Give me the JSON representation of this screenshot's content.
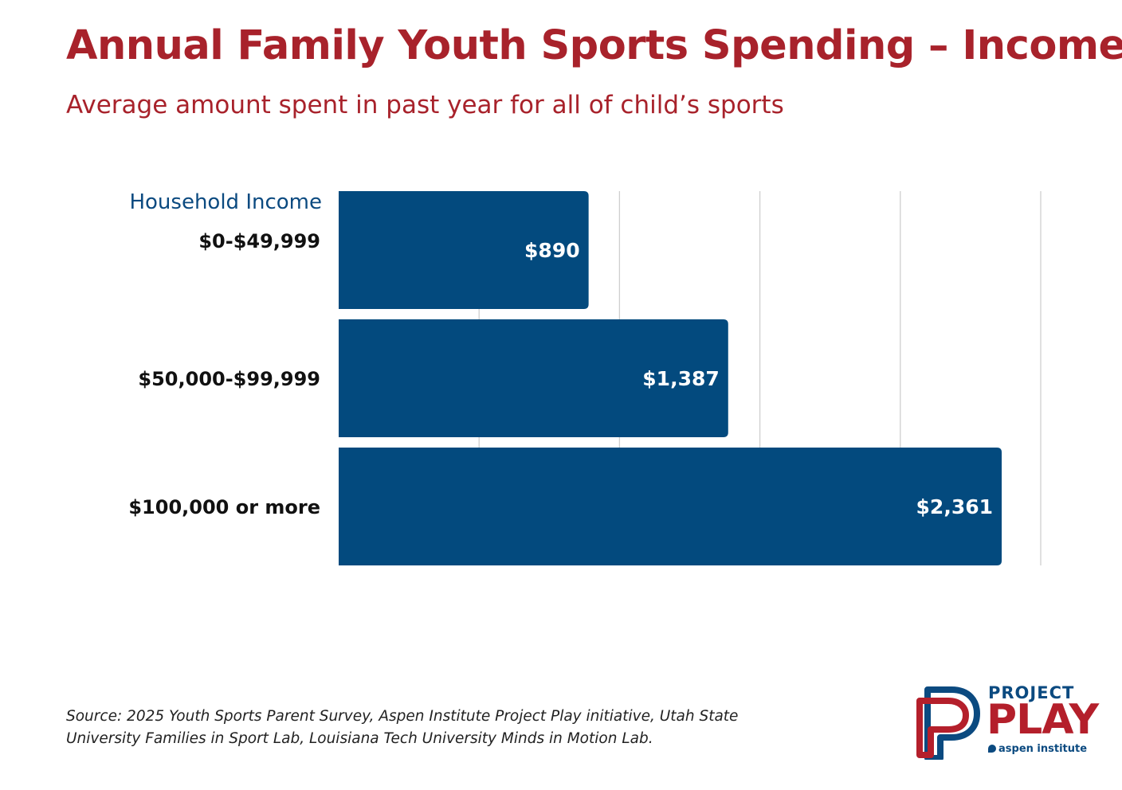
{
  "title": "Annual Family Youth Sports Spending – Income",
  "subtitle": "Average amount spent in past year for all of child’s sports",
  "colors": {
    "title": "#a8222b",
    "bar": "#034a7e",
    "category_heading": "#0b4a80",
    "grid": "#cfcfcf"
  },
  "chart_data": {
    "type": "bar",
    "orientation": "horizontal",
    "category_heading": "Household Income",
    "categories": [
      "$0-$49,999",
      "$50,000-$99,999",
      "$100,000 or more"
    ],
    "values": [
      890,
      1387,
      2361
    ],
    "value_labels": [
      "$890",
      "$1,387",
      "$2,361"
    ],
    "xlim": [
      0,
      2500
    ],
    "gridline_step": 500,
    "grid": true,
    "legend": "none"
  },
  "footer": {
    "source": "Source: 2025 Youth Sports Parent Survey, Aspen Institute Project Play initiative, Utah State University Families in Sport Lab, Louisiana Tech University Minds in Motion Lab."
  },
  "logo": {
    "line1": "PROJECT",
    "line2": "PLAY",
    "line3": "aspen institute",
    "mark_icon": "project-play-pp-logo-icon"
  }
}
